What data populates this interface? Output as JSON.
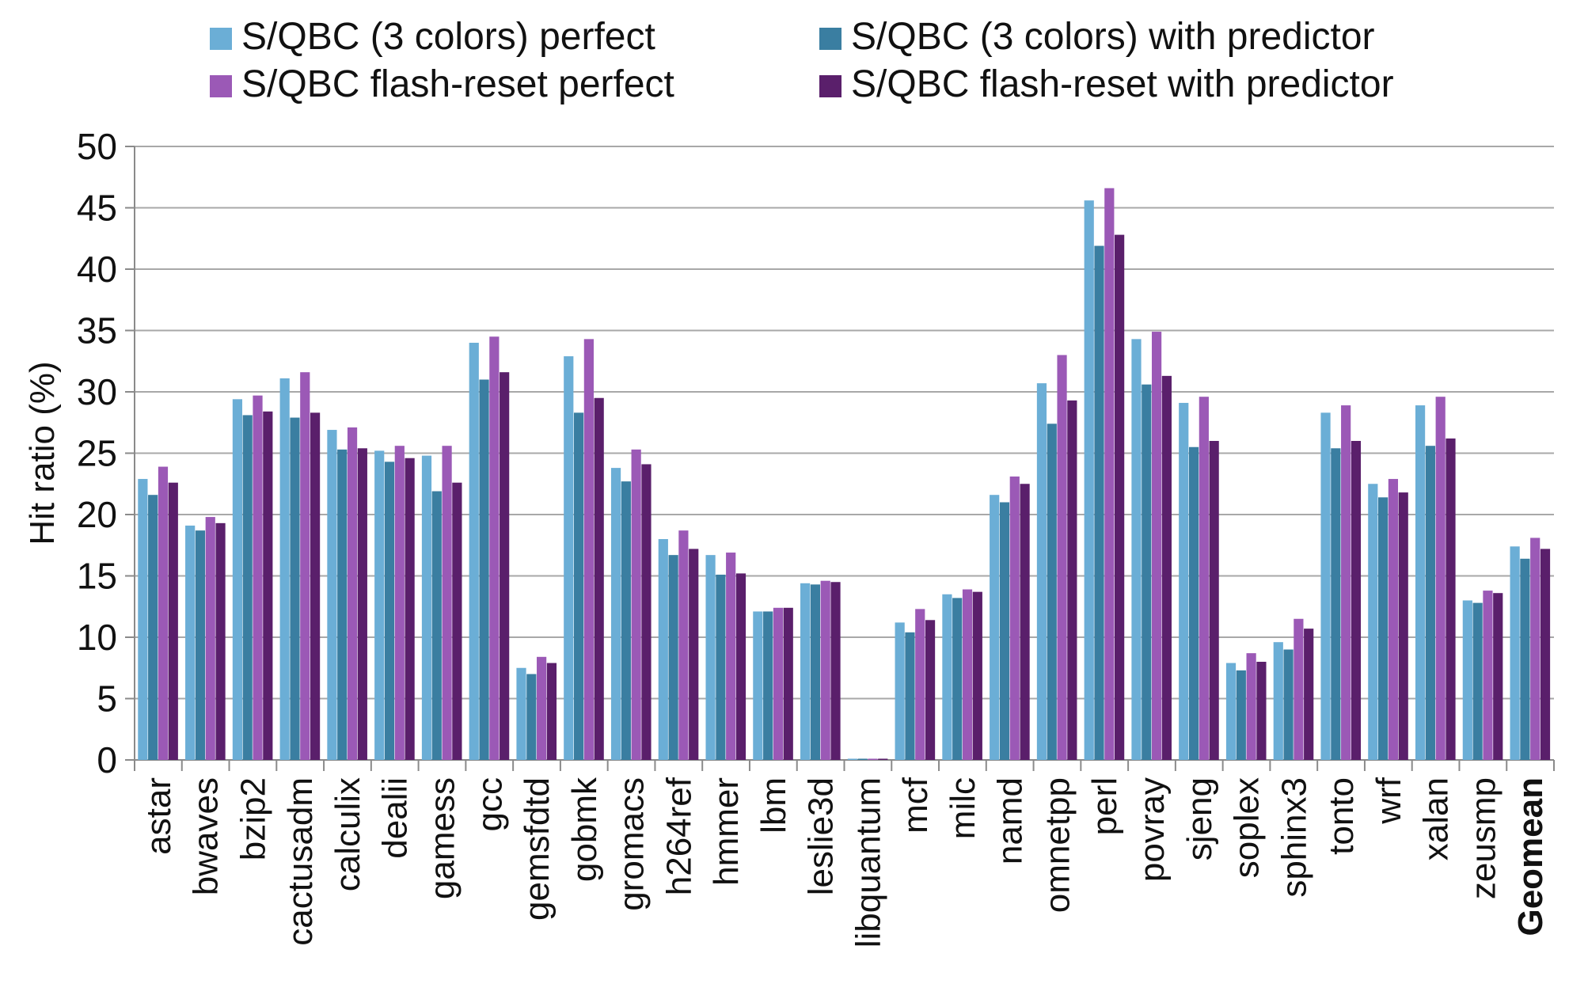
{
  "chart_data": {
    "type": "bar",
    "title": "",
    "xlabel": "",
    "ylabel": "Hit ratio (%)",
    "ylim": [
      0,
      50
    ],
    "yticks": [
      0,
      5,
      10,
      15,
      20,
      25,
      30,
      35,
      40,
      45,
      50
    ],
    "grid": true,
    "legend_position": "top",
    "bold_categories": [
      "Geomean"
    ],
    "categories": [
      "astar",
      "bwaves",
      "bzip2",
      "cactusadm",
      "calculix",
      "dealii",
      "gamess",
      "gcc",
      "gemsfdtd",
      "gobmk",
      "gromacs",
      "h264ref",
      "hmmer",
      "lbm",
      "leslie3d",
      "libquantum",
      "mcf",
      "milc",
      "namd",
      "omnetpp",
      "perl",
      "povray",
      "sjeng",
      "soplex",
      "sphinx3",
      "tonto",
      "wrf",
      "xalan",
      "zeusmp",
      "Geomean"
    ],
    "series": [
      {
        "name": "S/QBC (3 colors) perfect",
        "color": "#6baed6",
        "values": [
          22.9,
          19.1,
          29.4,
          31.1,
          26.9,
          25.2,
          24.8,
          34.0,
          7.5,
          32.9,
          23.8,
          18.0,
          16.7,
          12.1,
          14.4,
          0.1,
          11.2,
          13.5,
          21.6,
          30.7,
          45.6,
          34.3,
          29.1,
          7.9,
          9.6,
          28.3,
          22.5,
          28.9,
          13.0,
          17.4
        ]
      },
      {
        "name": "S/QBC  (3 colors) with predictor",
        "color": "#3a7ea1",
        "values": [
          21.6,
          18.7,
          28.1,
          27.9,
          25.3,
          24.3,
          21.9,
          31.0,
          7.0,
          28.3,
          22.7,
          16.7,
          15.1,
          12.1,
          14.3,
          0.1,
          10.4,
          13.2,
          21.0,
          27.4,
          41.9,
          30.6,
          25.5,
          7.3,
          9.0,
          25.4,
          21.4,
          25.6,
          12.8,
          16.4
        ]
      },
      {
        "name": "S/QBC  flash-reset perfect",
        "color": "#9b59b6",
        "values": [
          23.9,
          19.8,
          29.7,
          31.6,
          27.1,
          25.6,
          25.6,
          34.5,
          8.4,
          34.3,
          25.3,
          18.7,
          16.9,
          12.4,
          14.6,
          0.1,
          12.3,
          13.9,
          23.1,
          33.0,
          46.6,
          34.9,
          29.6,
          8.7,
          11.5,
          28.9,
          22.9,
          29.6,
          13.8,
          18.1
        ]
      },
      {
        "name": "S/QBC  flash-reset with predictor",
        "color": "#5a1f6b",
        "values": [
          22.6,
          19.3,
          28.4,
          28.3,
          25.4,
          24.6,
          22.6,
          31.6,
          7.9,
          29.5,
          24.1,
          17.2,
          15.2,
          12.4,
          14.5,
          0.1,
          11.4,
          13.7,
          22.5,
          29.3,
          42.8,
          31.3,
          26.0,
          8.0,
          10.7,
          26.0,
          21.8,
          26.2,
          13.6,
          17.2
        ]
      }
    ]
  }
}
